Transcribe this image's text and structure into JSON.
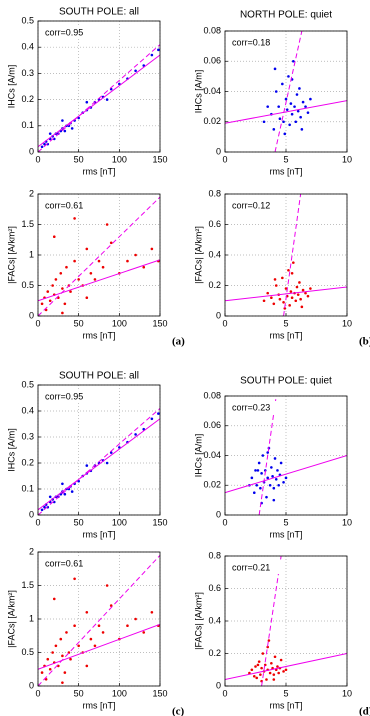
{
  "chart_data": [
    {
      "type": "scatter",
      "title": "SOUTH POLE: all",
      "xlabel": "rms [nT]",
      "ylabel": "IHCs [A/m]",
      "annotation": "corr=0.95",
      "xlim": [
        0,
        150
      ],
      "ylim": [
        0,
        0.5
      ],
      "xticks": [
        0,
        50,
        100,
        150
      ],
      "yticks": [
        0,
        0.1,
        0.2,
        0.3,
        0.4,
        0.5
      ],
      "grid": true,
      "series": [
        {
          "color": "#0000ee",
          "x": [
            5,
            8,
            10,
            12,
            15,
            18,
            20,
            22,
            25,
            28,
            30,
            33,
            35,
            38,
            40,
            45,
            50,
            55,
            60,
            65,
            70,
            75,
            80,
            90,
            100,
            110,
            120,
            130,
            140,
            148,
            30,
            42,
            15,
            60,
            85
          ],
          "values": [
            0.02,
            0.03,
            0.04,
            0.03,
            0.05,
            0.06,
            0.05,
            0.07,
            0.07,
            0.08,
            0.09,
            0.08,
            0.1,
            0.1,
            0.11,
            0.12,
            0.13,
            0.15,
            0.16,
            0.17,
            0.19,
            0.2,
            0.21,
            0.24,
            0.26,
            0.28,
            0.31,
            0.33,
            0.37,
            0.39,
            0.12,
            0.09,
            0.07,
            0.19,
            0.2
          ]
        },
        {
          "color": "#ee00ee",
          "line_style": "solid",
          "x": [
            0,
            150
          ],
          "values": [
            0.02,
            0.37
          ]
        },
        {
          "color": "#ee00ee",
          "line_style": "dashed",
          "x": [
            0,
            150
          ],
          "values": [
            0,
            0.41
          ]
        }
      ]
    },
    {
      "type": "scatter",
      "title": "NORTH POLE: quiet",
      "xlabel": "rms [nT]",
      "ylabel": "IHCs [A/m]",
      "annotation": "corr=0.18",
      "xlim": [
        0,
        10
      ],
      "ylim": [
        0,
        0.08
      ],
      "xticks": [
        0,
        5,
        10
      ],
      "yticks": [
        0,
        0.02,
        0.04,
        0.06,
        0.08
      ],
      "grid": true,
      "series": [
        {
          "color": "#0000ee",
          "x": [
            3.2,
            3.5,
            3.8,
            4.0,
            4.2,
            4.4,
            4.5,
            4.7,
            4.8,
            5.0,
            5.1,
            5.2,
            5.3,
            5.4,
            5.5,
            5.6,
            5.7,
            5.8,
            5.9,
            6.0,
            6.1,
            6.2,
            6.4,
            6.6,
            6.8,
            7.0,
            4.9,
            5.5,
            6.3,
            4.1
          ],
          "values": [
            0.02,
            0.03,
            0.025,
            0.015,
            0.04,
            0.03,
            0.022,
            0.045,
            0.02,
            0.035,
            0.028,
            0.05,
            0.018,
            0.032,
            0.025,
            0.06,
            0.03,
            0.02,
            0.038,
            0.027,
            0.042,
            0.023,
            0.033,
            0.03,
            0.026,
            0.035,
            0.012,
            0.048,
            0.015,
            0.055
          ]
        },
        {
          "color": "#ee00ee",
          "line_style": "solid",
          "x": [
            0,
            10
          ],
          "values": [
            0.019,
            0.034
          ]
        },
        {
          "color": "#ee00ee",
          "line_style": "dashed",
          "x": [
            4.1,
            6.3
          ],
          "values": [
            0,
            0.08
          ]
        }
      ]
    },
    {
      "type": "scatter",
      "xlabel": "rms [nT]",
      "ylabel": "|FACs| [A/km²]",
      "annotation": "corr=0.61",
      "panel_label": "(a)",
      "xlim": [
        0,
        150
      ],
      "ylim": [
        0,
        2
      ],
      "xticks": [
        0,
        50,
        100,
        150
      ],
      "yticks": [
        0,
        0.5,
        1,
        1.5,
        2
      ],
      "grid": true,
      "series": [
        {
          "color": "#ee0000",
          "x": [
            5,
            8,
            10,
            12,
            15,
            18,
            20,
            22,
            25,
            28,
            30,
            33,
            35,
            38,
            40,
            45,
            50,
            55,
            60,
            65,
            70,
            75,
            80,
            90,
            100,
            110,
            120,
            130,
            140,
            148,
            20,
            45,
            30,
            60,
            85
          ],
          "values": [
            0.2,
            0.3,
            0.1,
            0.4,
            0.25,
            0.5,
            0.35,
            0.6,
            0.3,
            0.7,
            0.45,
            0.2,
            0.8,
            0.5,
            0.4,
            0.9,
            0.6,
            0.5,
            1.1,
            0.7,
            0.6,
            0.9,
            0.8,
            1.2,
            0.7,
            0.9,
            1.0,
            0.8,
            1.1,
            0.9,
            1.3,
            1.6,
            0.05,
            0.3,
            1.5
          ]
        },
        {
          "color": "#ee00ee",
          "line_style": "solid",
          "x": [
            0,
            150
          ],
          "values": [
            0.25,
            0.92
          ]
        },
        {
          "color": "#ee00ee",
          "line_style": "dashed",
          "x": [
            0,
            150
          ],
          "values": [
            0,
            1.95
          ]
        }
      ]
    },
    {
      "type": "scatter",
      "xlabel": "rms [nT]",
      "ylabel": "|FACs| [A/km²]",
      "annotation": "corr=0.12",
      "panel_label": "(b)",
      "xlim": [
        0,
        10
      ],
      "ylim": [
        0,
        0.8
      ],
      "xticks": [
        0,
        5,
        10
      ],
      "yticks": [
        0,
        0.2,
        0.4,
        0.6,
        0.8
      ],
      "grid": true,
      "series": [
        {
          "color": "#ee0000",
          "x": [
            3.2,
            3.5,
            3.8,
            4.0,
            4.2,
            4.4,
            4.5,
            4.7,
            4.8,
            5.0,
            5.1,
            5.2,
            5.3,
            5.4,
            5.5,
            5.6,
            5.7,
            5.8,
            5.9,
            6.0,
            6.1,
            6.2,
            6.4,
            6.6,
            6.8,
            7.0,
            4.9,
            5.5,
            6.3,
            4.1
          ],
          "values": [
            0.1,
            0.15,
            0.12,
            0.08,
            0.2,
            0.14,
            0.11,
            0.25,
            0.09,
            0.18,
            0.13,
            0.3,
            0.07,
            0.16,
            0.12,
            0.35,
            0.15,
            0.1,
            0.19,
            0.14,
            0.22,
            0.11,
            0.17,
            0.15,
            0.13,
            0.18,
            0.05,
            0.28,
            0.06,
            0.24
          ]
        },
        {
          "color": "#ee00ee",
          "line_style": "solid",
          "x": [
            0,
            10
          ],
          "values": [
            0.1,
            0.19
          ]
        },
        {
          "color": "#ee00ee",
          "line_style": "dashed",
          "x": [
            4.8,
            6.2
          ],
          "values": [
            0,
            0.8
          ]
        }
      ]
    },
    {
      "type": "scatter",
      "title": "SOUTH POLE: all",
      "xlabel": "rms [nT]",
      "ylabel": "IHCs [A/m]",
      "annotation": "corr=0.95",
      "xlim": [
        0,
        150
      ],
      "ylim": [
        0,
        0.5
      ],
      "xticks": [
        0,
        50,
        100,
        150
      ],
      "yticks": [
        0,
        0.1,
        0.2,
        0.3,
        0.4,
        0.5
      ],
      "grid": true,
      "series": [
        {
          "color": "#0000ee",
          "x": [
            5,
            8,
            10,
            12,
            15,
            18,
            20,
            22,
            25,
            28,
            30,
            33,
            35,
            38,
            40,
            45,
            50,
            55,
            60,
            65,
            70,
            75,
            80,
            90,
            100,
            110,
            120,
            130,
            140,
            148,
            30,
            42,
            15,
            60,
            85
          ],
          "values": [
            0.02,
            0.03,
            0.04,
            0.03,
            0.05,
            0.06,
            0.05,
            0.07,
            0.07,
            0.08,
            0.09,
            0.08,
            0.1,
            0.1,
            0.11,
            0.12,
            0.13,
            0.15,
            0.16,
            0.17,
            0.19,
            0.2,
            0.21,
            0.24,
            0.26,
            0.28,
            0.31,
            0.33,
            0.37,
            0.39,
            0.12,
            0.09,
            0.07,
            0.19,
            0.2
          ]
        },
        {
          "color": "#ee00ee",
          "line_style": "solid",
          "x": [
            0,
            150
          ],
          "values": [
            0.02,
            0.37
          ]
        },
        {
          "color": "#ee00ee",
          "line_style": "dashed",
          "x": [
            0,
            150
          ],
          "values": [
            0,
            0.41
          ]
        }
      ]
    },
    {
      "type": "scatter",
      "title": "SOUTH POLE: quiet",
      "xlabel": "rms [nT]",
      "ylabel": "IHCs [A/m]",
      "annotation": "corr=0.23",
      "xlim": [
        0,
        10
      ],
      "ylim": [
        0,
        0.08
      ],
      "xticks": [
        0,
        5,
        10
      ],
      "yticks": [
        0,
        0.02,
        0.04,
        0.06,
        0.08
      ],
      "grid": true,
      "series": [
        {
          "color": "#0000ee",
          "x": [
            2.0,
            2.2,
            2.4,
            2.5,
            2.6,
            2.8,
            2.9,
            3.0,
            3.1,
            3.2,
            3.3,
            3.4,
            3.5,
            3.6,
            3.7,
            3.8,
            3.9,
            4.0,
            4.1,
            4.2,
            4.3,
            4.4,
            4.5,
            4.6,
            4.8,
            5.0,
            3.0,
            3.5,
            4.0,
            2.7
          ],
          "values": [
            0.02,
            0.025,
            0.015,
            0.03,
            0.02,
            0.035,
            0.018,
            0.028,
            0.04,
            0.022,
            0.03,
            0.012,
            0.025,
            0.045,
            0.02,
            0.032,
            0.026,
            0.018,
            0.038,
            0.024,
            0.03,
            0.02,
            0.027,
            0.035,
            0.022,
            0.025,
            0.008,
            0.042,
            0.01,
            0.03
          ]
        },
        {
          "color": "#ee00ee",
          "line_style": "solid",
          "x": [
            0,
            10
          ],
          "values": [
            0.015,
            0.04
          ]
        },
        {
          "color": "#ee00ee",
          "line_style": "dashed",
          "x": [
            2.8,
            4.2
          ],
          "values": [
            0,
            0.08
          ]
        }
      ]
    },
    {
      "type": "scatter",
      "xlabel": "rms [nT]",
      "ylabel": "|FACs| [A/km²]",
      "annotation": "corr=0.61",
      "panel_label": "(c)",
      "xlim": [
        0,
        150
      ],
      "ylim": [
        0,
        2
      ],
      "xticks": [
        0,
        50,
        100,
        150
      ],
      "yticks": [
        0,
        0.5,
        1,
        1.5,
        2
      ],
      "grid": true,
      "series": [
        {
          "color": "#ee0000",
          "x": [
            5,
            8,
            10,
            12,
            15,
            18,
            20,
            22,
            25,
            28,
            30,
            33,
            35,
            38,
            40,
            45,
            50,
            55,
            60,
            65,
            70,
            75,
            80,
            90,
            100,
            110,
            120,
            130,
            140,
            148,
            20,
            45,
            30,
            60,
            85
          ],
          "values": [
            0.2,
            0.3,
            0.1,
            0.4,
            0.25,
            0.5,
            0.35,
            0.6,
            0.3,
            0.7,
            0.45,
            0.2,
            0.8,
            0.5,
            0.4,
            0.9,
            0.6,
            0.5,
            1.1,
            0.7,
            0.6,
            0.9,
            0.8,
            1.2,
            0.7,
            0.9,
            1.0,
            0.8,
            1.1,
            0.9,
            1.3,
            1.6,
            0.05,
            0.3,
            1.5
          ]
        },
        {
          "color": "#ee00ee",
          "line_style": "solid",
          "x": [
            0,
            150
          ],
          "values": [
            0.25,
            0.92
          ]
        },
        {
          "color": "#ee00ee",
          "line_style": "dashed",
          "x": [
            0,
            150
          ],
          "values": [
            0,
            1.95
          ]
        }
      ]
    },
    {
      "type": "scatter",
      "xlabel": "rms [nT]",
      "ylabel": "|FACs| [A/km²]",
      "annotation": "corr=0.21",
      "panel_label": "(d)",
      "xlim": [
        0,
        10
      ],
      "ylim": [
        0,
        0.8
      ],
      "xticks": [
        0,
        5,
        10
      ],
      "yticks": [
        0,
        0.2,
        0.4,
        0.6,
        0.8
      ],
      "grid": true,
      "series": [
        {
          "color": "#ee0000",
          "x": [
            2.0,
            2.2,
            2.4,
            2.5,
            2.6,
            2.8,
            2.9,
            3.0,
            3.1,
            3.2,
            3.3,
            3.4,
            3.5,
            3.6,
            3.7,
            3.8,
            3.9,
            4.0,
            4.1,
            4.2,
            4.3,
            4.4,
            4.5,
            4.6,
            4.8,
            5.0,
            3.0,
            3.5,
            4.0,
            2.7
          ],
          "values": [
            0.08,
            0.1,
            0.06,
            0.12,
            0.05,
            0.15,
            0.07,
            0.11,
            0.2,
            0.09,
            0.13,
            0.04,
            0.1,
            0.28,
            0.08,
            0.14,
            0.11,
            0.07,
            0.18,
            0.1,
            0.12,
            0.08,
            0.11,
            0.16,
            0.09,
            0.1,
            0.03,
            0.24,
            0.04,
            0.13
          ]
        },
        {
          "color": "#ee00ee",
          "line_style": "solid",
          "x": [
            0,
            10
          ],
          "values": [
            0.04,
            0.2
          ]
        },
        {
          "color": "#ee00ee",
          "line_style": "dashed",
          "x": [
            3,
            4.6
          ],
          "values": [
            0,
            0.8
          ]
        }
      ]
    }
  ]
}
